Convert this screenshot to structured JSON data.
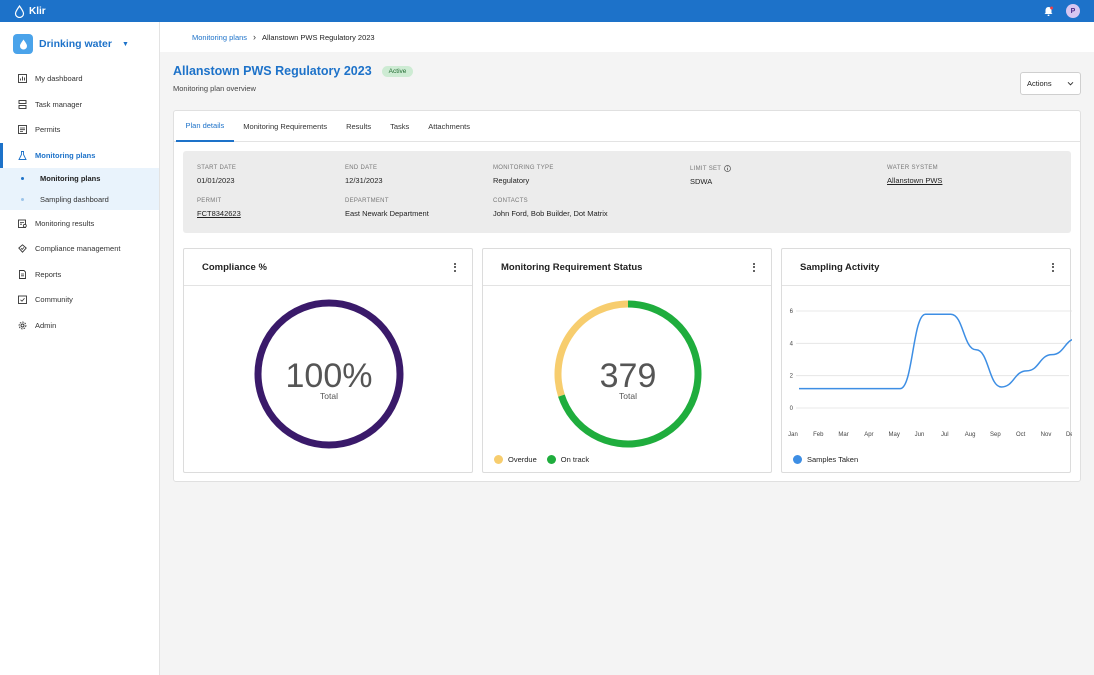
{
  "app": {
    "name": "Klir"
  },
  "user": {
    "initial": "P"
  },
  "sidebar": {
    "product": "Drinking water",
    "items": [
      {
        "label": "My dashboard",
        "icon": "dashboard-icon"
      },
      {
        "label": "Task manager",
        "icon": "task-icon"
      },
      {
        "label": "Permits",
        "icon": "permit-icon"
      },
      {
        "label": "Monitoring plans",
        "icon": "flask-icon"
      },
      {
        "label": "Monitoring results",
        "icon": "results-icon"
      },
      {
        "label": "Compliance management",
        "icon": "compliance-icon"
      },
      {
        "label": "Reports",
        "icon": "report-icon"
      },
      {
        "label": "Community",
        "icon": "community-icon"
      },
      {
        "label": "Admin",
        "icon": "gear-icon"
      }
    ],
    "subitems": [
      {
        "label": "Monitoring plans"
      },
      {
        "label": "Sampling dashboard"
      }
    ]
  },
  "breadcrumb": {
    "parent": "Monitoring plans",
    "current": "Allanstown PWS Regulatory 2023"
  },
  "header": {
    "title": "Allanstown PWS Regulatory 2023",
    "status": "Active",
    "subtitle": "Monitoring plan overview",
    "actions_label": "Actions"
  },
  "tabs": [
    "Plan details",
    "Monitoring Requirements",
    "Results",
    "Tasks",
    "Attachments"
  ],
  "details": {
    "start_date": {
      "label": "START DATE",
      "value": "01/01/2023"
    },
    "end_date": {
      "label": "END DATE",
      "value": "12/31/2023"
    },
    "monitoring_type": {
      "label": "MONITORING TYPE",
      "value": "Regulatory"
    },
    "limit_set": {
      "label": "LIMIT SET",
      "value": "SDWA"
    },
    "water_system": {
      "label": "WATER SYSTEM",
      "value": "Allanstown PWS"
    },
    "permit": {
      "label": "PERMIT",
      "value": "FCT8342623"
    },
    "department": {
      "label": "DEPARTMENT",
      "value": "East Newark Department"
    },
    "contacts": {
      "label": "CONTACTS",
      "value": "John Ford, Bob Builder, Dot Matrix"
    }
  },
  "cards": {
    "compliance": {
      "title": "Compliance %",
      "value": "100%",
      "caption": "Total",
      "percent": 100,
      "color": "#3a1a6a"
    },
    "requirement_status": {
      "title": "Monitoring Requirement Status",
      "value": "379",
      "caption": "Total",
      "segments": [
        {
          "name": "Overdue",
          "fraction": 0.3,
          "color": "#f7cd6e"
        },
        {
          "name": "On track",
          "fraction": 0.7,
          "color": "#1fad3d"
        }
      ]
    },
    "sampling": {
      "title": "Sampling Activity",
      "legend": "Samples Taken",
      "color": "#3d8ee4"
    }
  },
  "chart_data": {
    "type": "line",
    "title": "Sampling Activity",
    "categories": [
      "Jan",
      "Feb",
      "Mar",
      "Apr",
      "May",
      "Jun",
      "Jul",
      "Aug",
      "Sep",
      "Oct",
      "Nov",
      "Dec"
    ],
    "series": [
      {
        "name": "Samples Taken",
        "values": [
          1.2,
          1.2,
          1.2,
          1.2,
          1.2,
          5.8,
          5.8,
          3.6,
          1.3,
          2.3,
          3.3,
          4.3
        ]
      }
    ],
    "yticks": [
      "0",
      "2",
      "4",
      "6"
    ],
    "ylim": [
      0,
      6
    ],
    "grid": true,
    "legend": "bottom-left"
  }
}
